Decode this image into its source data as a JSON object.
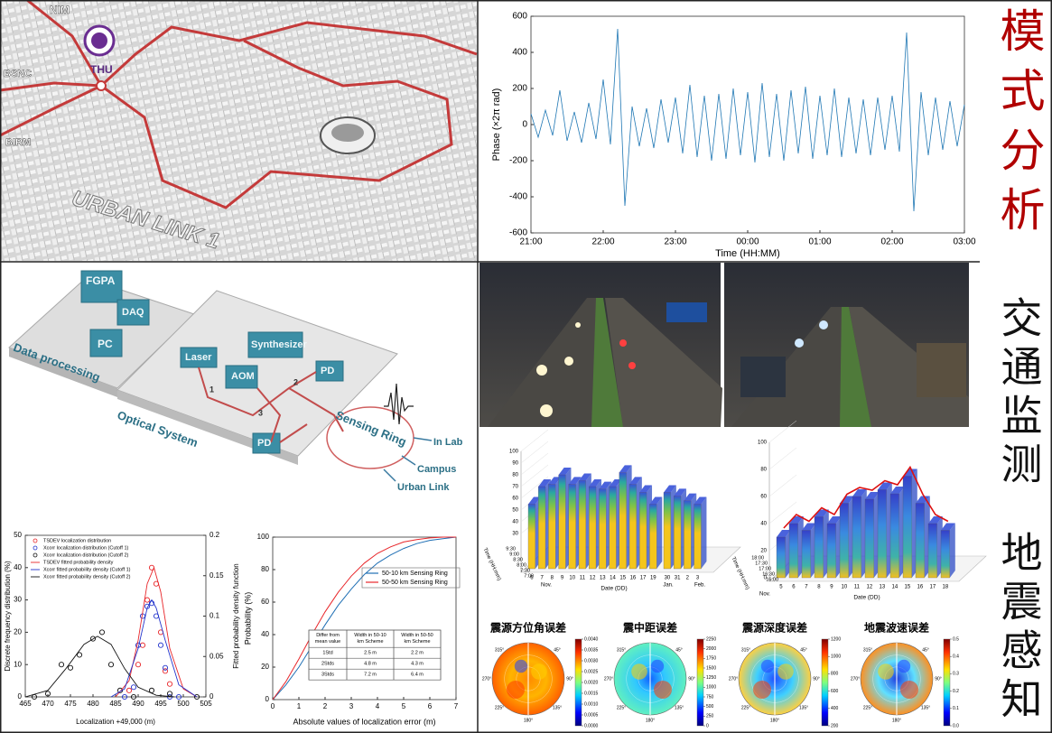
{
  "map": {
    "labels": [
      "NIM",
      "BSNC",
      "THU",
      "BIRM",
      "URBAN LINK 1"
    ]
  },
  "diagram": {
    "labels": [
      "FGPA",
      "DAQ",
      "PC",
      "Data processing",
      "Laser",
      "AOM",
      "Synthesizer",
      "PD",
      "PD",
      "Optical System",
      "Sensing Ring",
      "In Lab",
      "Campus",
      "Urban Link",
      "1",
      "2",
      "3"
    ]
  },
  "section_labels": [
    "模式分析",
    "交通监测",
    "地震感知"
  ],
  "chart_data": [
    {
      "type": "line",
      "ylabel": "Phase (×2π rad)",
      "xlabel": "Time (HH:MM)",
      "xlim": [
        0,
        360
      ],
      "xticks": [
        {
          "value": 0,
          "label": "21:00"
        },
        {
          "value": 60,
          "label": "22:00"
        },
        {
          "value": 120,
          "label": "23:00"
        },
        {
          "value": 180,
          "label": "00:00"
        },
        {
          "value": 240,
          "label": "01:00"
        },
        {
          "value": 300,
          "label": "02:00"
        },
        {
          "value": 360,
          "label": "03:00"
        }
      ],
      "ylim": [
        -600,
        600
      ],
      "yticks": [
        -600,
        -400,
        -200,
        0,
        200,
        400,
        600
      ],
      "series": [
        {
          "color": "#1f77b4",
          "x": [
            0,
            6,
            12,
            18,
            24,
            30,
            36,
            42,
            48,
            54,
            60,
            66,
            72,
            78,
            84,
            90,
            96,
            102,
            108,
            114,
            120,
            126,
            132,
            138,
            144,
            150,
            156,
            162,
            168,
            174,
            180,
            186,
            192,
            198,
            204,
            210,
            216,
            222,
            228,
            234,
            240,
            246,
            252,
            258,
            264,
            270,
            276,
            282,
            288,
            294,
            300,
            306,
            312,
            318,
            324,
            330,
            336,
            342,
            348,
            354,
            360
          ],
          "values": [
            60,
            -70,
            80,
            -60,
            190,
            -90,
            70,
            -100,
            120,
            -80,
            250,
            -110,
            530,
            -450,
            100,
            -120,
            90,
            -130,
            140,
            -100,
            150,
            -160,
            220,
            -180,
            160,
            -200,
            170,
            -190,
            200,
            -170,
            180,
            -210,
            230,
            -180,
            170,
            -200,
            190,
            -160,
            210,
            -190,
            160,
            -170,
            200,
            -180,
            150,
            -160,
            140,
            -170,
            150,
            -140,
            160,
            -150,
            510,
            -480,
            180,
            -170,
            150,
            -140,
            130,
            -120,
            110
          ]
        }
      ]
    },
    {
      "type": "scatter",
      "ylabel": "Discrete frequency distribution (%)",
      "y2label": "Fitted probability density function",
      "xlabel": "Localization +49,000 (m)",
      "xlim": [
        465,
        505
      ],
      "xticks": [
        465,
        470,
        475,
        480,
        485,
        490,
        495,
        500,
        505
      ],
      "ylim": [
        0,
        50
      ],
      "yticks": [
        0,
        10,
        20,
        30,
        40,
        50
      ],
      "y2lim": [
        0,
        0.2
      ],
      "y2ticks": [
        0,
        0.05,
        0.1,
        0.15,
        0.2
      ],
      "legend": "upper left",
      "series": [
        {
          "name": "TSDEV localization distribution",
          "color": "#e8262a",
          "marker": "circle",
          "x": [
            488,
            490,
            491,
            492,
            493,
            494,
            495,
            496,
            497
          ],
          "values": [
            2,
            10,
            16,
            30,
            40,
            35,
            20,
            8,
            4
          ]
        },
        {
          "name": "Xcorr localization distribution (Cutoff 1)",
          "color": "#2233cc",
          "marker": "circle",
          "x": [
            487,
            489,
            490,
            491,
            492,
            493,
            494,
            495,
            496,
            497,
            499
          ],
          "values": [
            0,
            3,
            16,
            25,
            28,
            29,
            25,
            16,
            9,
            0,
            0
          ]
        },
        {
          "name": "Xcorr localization distribution (Cutoff 2)",
          "color": "#111111",
          "marker": "circle",
          "x": [
            467,
            470,
            473,
            475,
            477,
            480,
            482,
            484,
            486,
            489,
            493,
            497,
            503
          ],
          "values": [
            0,
            1,
            10,
            9,
            13,
            18,
            20,
            10,
            2,
            0,
            2,
            1,
            0
          ]
        },
        {
          "name": "TSDEV fitted probability density",
          "color": "#e8262a",
          "marker": "line",
          "axis": "y2",
          "x": [
            485,
            488,
            490,
            492,
            493.5,
            495,
            497,
            500,
            503
          ],
          "values": [
            0,
            0.02,
            0.07,
            0.14,
            0.16,
            0.13,
            0.06,
            0.01,
            0
          ]
        },
        {
          "name": "Xcorr fitted probability density (Cutoff 1)",
          "color": "#2233cc",
          "marker": "line",
          "axis": "y2",
          "x": [
            484,
            487,
            490,
            492,
            493,
            494,
            496,
            499,
            503
          ],
          "values": [
            0,
            0.01,
            0.06,
            0.11,
            0.12,
            0.11,
            0.07,
            0.015,
            0
          ]
        },
        {
          "name": "Xcorr fitted probability density (Cutoff 2)",
          "color": "#111111",
          "marker": "line",
          "axis": "y2",
          "x": [
            465,
            470,
            474,
            478,
            481,
            484,
            487,
            490,
            494,
            498
          ],
          "values": [
            0,
            0.008,
            0.035,
            0.065,
            0.075,
            0.065,
            0.035,
            0.012,
            0.002,
            0
          ]
        }
      ]
    },
    {
      "type": "line",
      "ylabel": "Probability (%)",
      "xlabel": "Absolute values of localization error (m)",
      "xlim": [
        0,
        7
      ],
      "xticks": [
        0,
        1,
        2,
        3,
        4,
        5,
        6,
        7
      ],
      "ylim": [
        0,
        100
      ],
      "yticks": [
        0,
        20,
        40,
        60,
        80,
        100
      ],
      "legend": "upper right",
      "series": [
        {
          "name": "50-10 km Sensing Ring",
          "color": "#1f6fb4",
          "x": [
            0,
            0.5,
            1,
            1.5,
            2,
            2.5,
            3,
            3.5,
            4,
            4.5,
            5,
            5.5,
            6,
            6.5,
            7
          ],
          "values": [
            0,
            9,
            20,
            33,
            46,
            58,
            68,
            77,
            84,
            89,
            93,
            96,
            98,
            99,
            100
          ]
        },
        {
          "name": "50-50 km Sensing Ring",
          "color": "#e8262a",
          "x": [
            0,
            0.5,
            1,
            1.5,
            2,
            2.5,
            3,
            3.5,
            4,
            4.5,
            5,
            5.5,
            6,
            6.5,
            7
          ],
          "values": [
            0,
            11,
            25,
            40,
            54,
            66,
            76,
            84,
            90,
            94,
            97,
            98.5,
            99.5,
            100,
            100
          ]
        }
      ],
      "table": {
        "header": [
          "Differ from mean value",
          "Width in 50-10 km Scheme",
          "Width in 50-50 km Scheme"
        ],
        "rows": [
          [
            "1Std",
            "2.5 m",
            "2.2 m"
          ],
          [
            "2Stds",
            "4.8 m",
            "4.3 m"
          ],
          [
            "3Stds",
            "7.2 m",
            "6.4 m"
          ]
        ]
      }
    },
    {
      "type": "bar3d",
      "ylabel": "Time (HH:mm)",
      "xlabel": "Date (DD)",
      "zlim": [
        0,
        100
      ],
      "zticks": [
        30,
        40,
        50,
        60,
        70,
        80,
        90,
        100
      ],
      "time_labels": [
        "9:30",
        "9:00",
        "8:30",
        "8:00",
        "7:30",
        "7:00"
      ],
      "months": [
        "Nov.",
        "Jan.",
        "Feb."
      ],
      "categories": [
        "6",
        "7",
        "8",
        "9",
        "10",
        "11",
        "12",
        "13",
        "14",
        "15",
        "16",
        "17",
        "19"
      ],
      "values": [
        55,
        70,
        72,
        80,
        72,
        75,
        70,
        68,
        70,
        82,
        72,
        65,
        55
      ],
      "categories2": [
        "30",
        "31",
        "2",
        "3"
      ],
      "values2": [
        65,
        62,
        58,
        55
      ]
    },
    {
      "type": "bar3d",
      "ylabel": "Time (HH:mm)",
      "xlabel": "Date (DD)",
      "zlim": [
        0,
        100
      ],
      "zticks": [
        0,
        20,
        40,
        60,
        80,
        100
      ],
      "time_labels": [
        "18:00",
        "17:30",
        "17:00",
        "16:30",
        "16:00"
      ],
      "months": [
        "Nov."
      ],
      "categories": [
        "5",
        "6",
        "7",
        "8",
        "9",
        "10",
        "11",
        "12",
        "13",
        "14",
        "15",
        "16",
        "17",
        "18"
      ],
      "values": [
        30,
        40,
        35,
        45,
        40,
        55,
        60,
        58,
        65,
        62,
        75,
        55,
        40,
        35
      ],
      "curve_color": "#dd1111"
    },
    {
      "type": "polar_heatmap",
      "title": "震源方位角误差",
      "clim": [
        0,
        0.004
      ],
      "cticks": [
        {
          "value": 0,
          "label": "0.0000"
        },
        {
          "value": 0.0005,
          "label": "0.0005"
        },
        {
          "value": 0.001,
          "label": "0.0010"
        },
        {
          "value": 0.0015,
          "label": "0.0015"
        },
        {
          "value": 0.002,
          "label": "0.0020"
        },
        {
          "value": 0.0025,
          "label": "0.0025"
        },
        {
          "value": 0.003,
          "label": "0.0030"
        },
        {
          "value": 0.0035,
          "label": "0.0035"
        },
        {
          "value": 0.004,
          "label": "0.0040"
        }
      ],
      "angles": [
        "315°",
        "45°",
        "270°",
        "90°",
        "225°",
        "135°",
        "180°"
      ]
    },
    {
      "type": "polar_heatmap",
      "title": "震中距误差",
      "clim": [
        0,
        2250
      ],
      "cticks": [
        0,
        250,
        500,
        750,
        1000,
        1250,
        1500,
        1750,
        2000,
        2250
      ],
      "angles": [
        "315°",
        "45°",
        "270°",
        "90°",
        "225°",
        "135°",
        "180°"
      ]
    },
    {
      "type": "polar_heatmap",
      "title": "震源深度误差",
      "clim": [
        200,
        1200
      ],
      "cticks": [
        200,
        400,
        600,
        800,
        1000,
        1200
      ],
      "angles": [
        "315°",
        "45°",
        "270°",
        "90°",
        "225°",
        "135°",
        "180°"
      ]
    },
    {
      "type": "polar_heatmap",
      "title": "地震波速误差",
      "clim": [
        0,
        0.5
      ],
      "cticks": [
        {
          "value": 0,
          "label": "0.0"
        },
        0.1,
        0.2,
        0.3,
        0.4,
        0.5
      ],
      "angles": [
        "315°",
        "45°",
        "270°",
        "90°",
        "225°",
        "135°",
        "180°"
      ]
    }
  ]
}
